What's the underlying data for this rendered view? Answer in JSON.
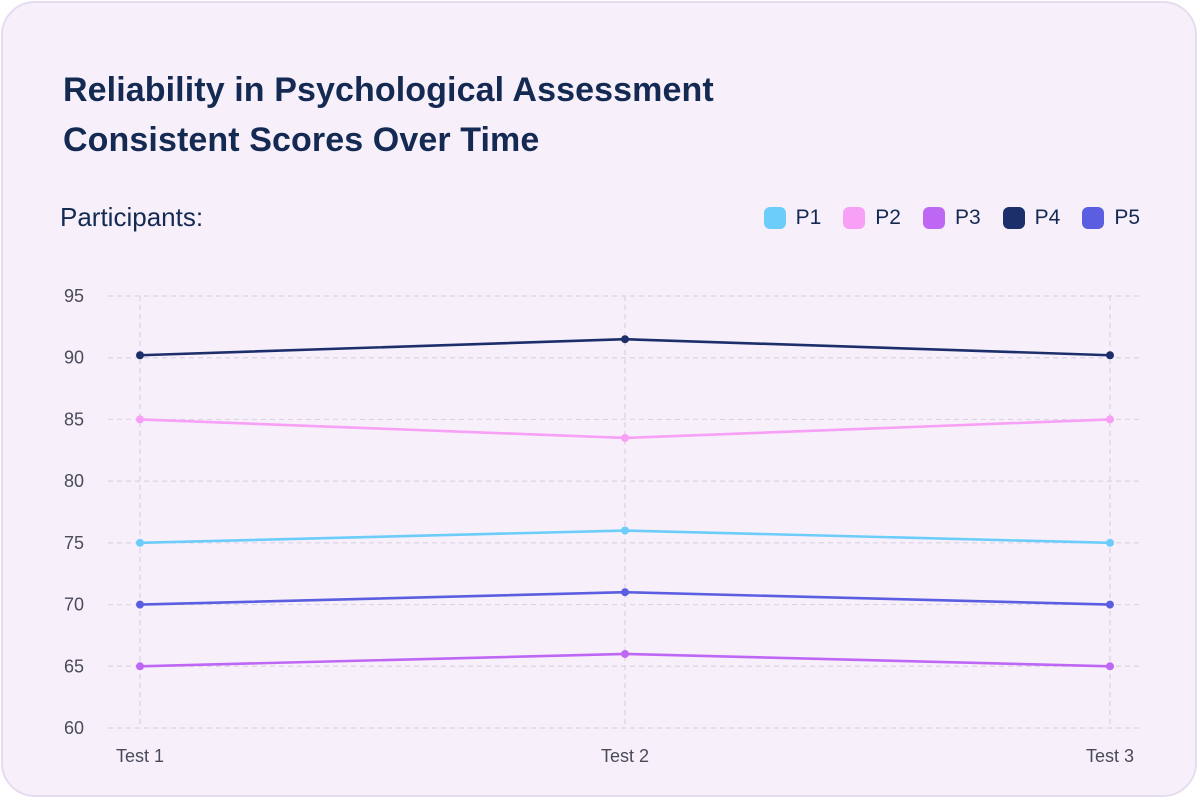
{
  "title_line1": "Reliability in Psychological Assessment",
  "title_line2": "Consistent Scores Over Time",
  "legend_title": "Participants:",
  "chart_data": {
    "type": "line",
    "title": "Reliability in Psychological Assessment Consistent Scores Over Time",
    "xlabel": "",
    "ylabel": "",
    "categories": [
      "Test 1",
      "Test 2",
      "Test 3"
    ],
    "ylim": [
      60,
      95
    ],
    "yticks": [
      60,
      65,
      70,
      75,
      80,
      85,
      90,
      95
    ],
    "grid": true,
    "legend_position": "top-right",
    "series": [
      {
        "name": "P1",
        "color": "#6ccdfb",
        "values": [
          75,
          76,
          75
        ]
      },
      {
        "name": "P2",
        "color": "#f7a0f5",
        "values": [
          85,
          83.5,
          85
        ]
      },
      {
        "name": "P3",
        "color": "#bf67f5",
        "values": [
          65,
          66,
          65
        ]
      },
      {
        "name": "P4",
        "color": "#1d2f6b",
        "values": [
          90.2,
          91.5,
          90.2
        ]
      },
      {
        "name": "P5",
        "color": "#5b5ee0",
        "values": [
          70,
          71,
          70
        ]
      }
    ]
  }
}
